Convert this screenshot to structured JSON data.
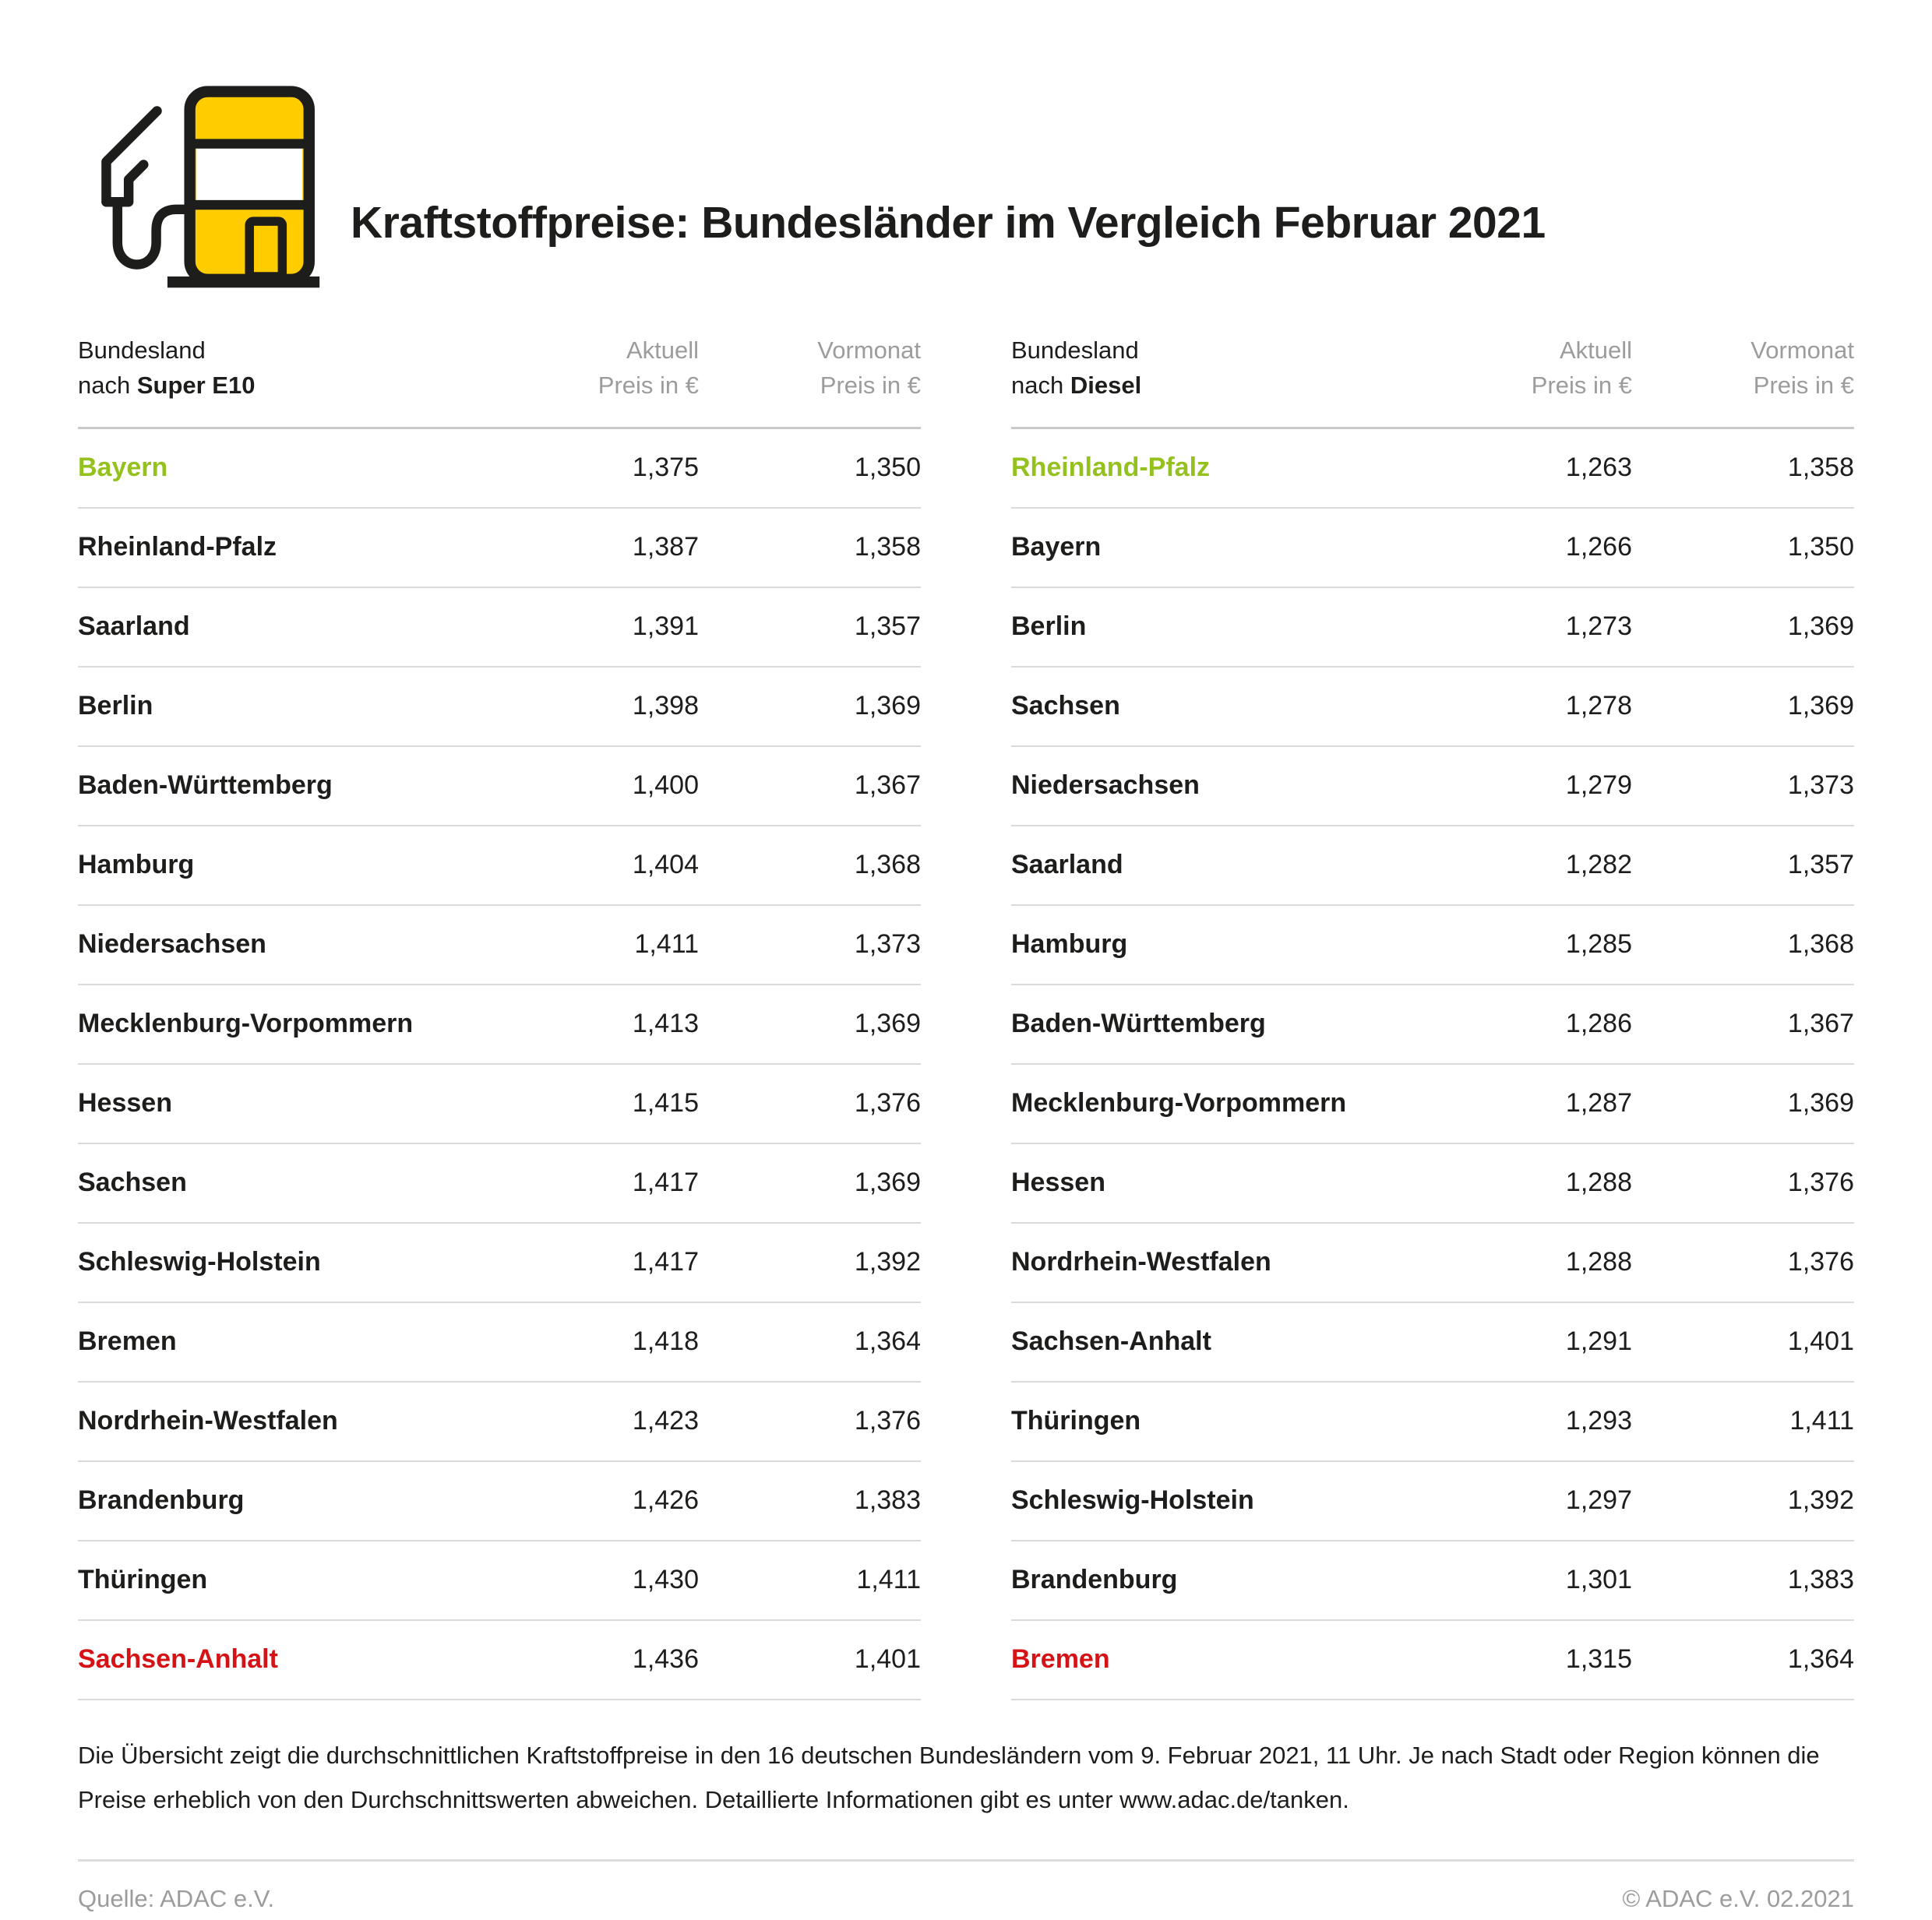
{
  "header": {
    "title": "Kraftstoffpreise: Bundesländer im Vergleich Februar 2021"
  },
  "colors": {
    "brand_yellow": "#FFCC00",
    "icon_outline": "#1D1D1B",
    "cheapest_green": "#95C11F",
    "most_expensive_red": "#D51317",
    "header_gray": "#9C9C9B",
    "divider_gray": "#DADADA"
  },
  "tables": [
    {
      "head": {
        "col1_line1": "Bundesland",
        "col1_prefix": "nach ",
        "col1_bold": "Super E10",
        "col2_line1": "Aktuell",
        "col2_line2": "Preis in €",
        "col3_line1": "Vormonat",
        "col3_line2": "Preis in €"
      }
    },
    {
      "head": {
        "col1_line1": "Bundesland",
        "col1_prefix": "nach ",
        "col1_bold": "Diesel",
        "col2_line1": "Aktuell",
        "col2_line2": "Preis in €",
        "col3_line1": "Vormonat",
        "col3_line2": "Preis in €"
      }
    }
  ],
  "chart_data": [
    {
      "type": "table",
      "title": "Bundesland nach Super E10",
      "columns": [
        "Bundesland",
        "Aktuell Preis in €",
        "Vormonat Preis in €"
      ],
      "rows": [
        [
          "Bayern",
          "1,375",
          "1,350"
        ],
        [
          "Rheinland-Pfalz",
          "1,387",
          "1,358"
        ],
        [
          "Saarland",
          "1,391",
          "1,357"
        ],
        [
          "Berlin",
          "1,398",
          "1,369"
        ],
        [
          "Baden-Württemberg",
          "1,400",
          "1,367"
        ],
        [
          "Hamburg",
          "1,404",
          "1,368"
        ],
        [
          "Niedersachsen",
          "1,411",
          "1,373"
        ],
        [
          "Mecklenburg-Vorpommern",
          "1,413",
          "1,369"
        ],
        [
          "Hessen",
          "1,415",
          "1,376"
        ],
        [
          "Sachsen",
          "1,417",
          "1,369"
        ],
        [
          "Schleswig-Holstein",
          "1,417",
          "1,392"
        ],
        [
          "Bremen",
          "1,418",
          "1,364"
        ],
        [
          "Nordrhein-Westfalen",
          "1,423",
          "1,376"
        ],
        [
          "Brandenburg",
          "1,426",
          "1,383"
        ],
        [
          "Thüringen",
          "1,430",
          "1,411"
        ],
        [
          "Sachsen-Anhalt",
          "1,436",
          "1,401"
        ]
      ],
      "row_highlights": [
        "green",
        "",
        "",
        "",
        "",
        "",
        "",
        "",
        "",
        "",
        "",
        "",
        "",
        "",
        "",
        "red"
      ]
    },
    {
      "type": "table",
      "title": "Bundesland nach Diesel",
      "columns": [
        "Bundesland",
        "Aktuell Preis in €",
        "Vormonat Preis in €"
      ],
      "rows": [
        [
          "Rheinland-Pfalz",
          "1,263",
          "1,358"
        ],
        [
          "Bayern",
          "1,266",
          "1,350"
        ],
        [
          "Berlin",
          "1,273",
          "1,369"
        ],
        [
          "Sachsen",
          "1,278",
          "1,369"
        ],
        [
          "Niedersachsen",
          "1,279",
          "1,373"
        ],
        [
          "Saarland",
          "1,282",
          "1,357"
        ],
        [
          "Hamburg",
          "1,285",
          "1,368"
        ],
        [
          "Baden-Württemberg",
          "1,286",
          "1,367"
        ],
        [
          "Mecklenburg-Vorpommern",
          "1,287",
          "1,369"
        ],
        [
          "Hessen",
          "1,288",
          "1,376"
        ],
        [
          "Nordrhein-Westfalen",
          "1,288",
          "1,376"
        ],
        [
          "Sachsen-Anhalt",
          "1,291",
          "1,401"
        ],
        [
          "Thüringen",
          "1,293",
          "1,411"
        ],
        [
          "Schleswig-Holstein",
          "1,297",
          "1,392"
        ],
        [
          "Brandenburg",
          "1,301",
          "1,383"
        ],
        [
          "Bremen",
          "1,315",
          "1,364"
        ]
      ],
      "row_highlights": [
        "green",
        "",
        "",
        "",
        "",
        "",
        "",
        "",
        "",
        "",
        "",
        "",
        "",
        "",
        "",
        "red"
      ]
    }
  ],
  "footnote": {
    "line1": "Die Übersicht zeigt die durchschnittlichen Kraftstoffpreise in den 16 deutschen Bundesländern vom 9. Februar 2021, 11 Uhr. Je nach Stadt oder Region können die",
    "line2": "Preise erheblich von den Durchschnittswerten abweichen. Detaillierte Informationen gibt es unter www.adac.de/tanken."
  },
  "footer": {
    "source": "Quelle: ADAC e.V.",
    "copyright": "© ADAC e.V. 02.2021"
  }
}
